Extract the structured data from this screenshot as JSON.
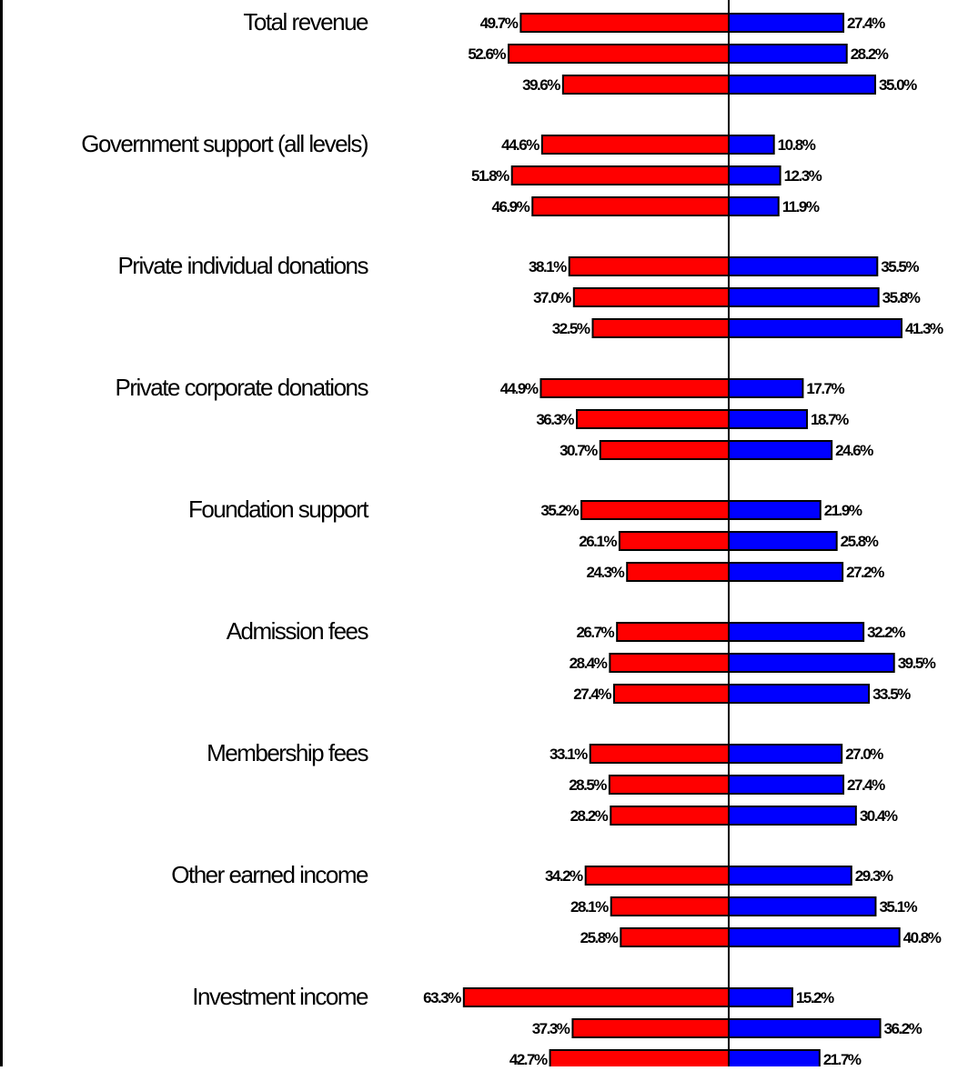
{
  "chart_data": {
    "type": "bar",
    "orientation": "horizontal-diverging",
    "title": "",
    "xlabel": "",
    "ylabel": "",
    "xlim": [
      -64,
      43
    ],
    "grid": false,
    "legend": "none",
    "colors": {
      "negative": "#ff0000",
      "positive": "#0000ff",
      "axis": "#000000"
    },
    "categories": [
      "Total revenue",
      "Government support (all levels)",
      "Private individual donations",
      "Private corporate donations",
      "Foundation support",
      "Admission fees",
      "Membership fees",
      "Other earned income",
      "Investment income"
    ],
    "groups": [
      {
        "left": [
          49.7,
          52.6,
          39.6
        ],
        "right": [
          27.4,
          28.2,
          35.0
        ],
        "left_labels": [
          "49.7%",
          "52.6%",
          "39.6%"
        ],
        "right_labels": [
          "27.4%",
          "28.2%",
          "35.0%"
        ]
      },
      {
        "left": [
          44.6,
          51.8,
          46.9
        ],
        "right": [
          10.8,
          12.3,
          11.9
        ],
        "left_labels": [
          "44.6%",
          "51.8%",
          "46.9%"
        ],
        "right_labels": [
          "10.8%",
          "12.3%",
          "11.9%"
        ]
      },
      {
        "left": [
          38.1,
          37.0,
          32.5
        ],
        "right": [
          35.5,
          35.8,
          41.3
        ],
        "left_labels": [
          "38.1%",
          "37.0%",
          "32.5%"
        ],
        "right_labels": [
          "35.5%",
          "35.8%",
          "41.3%"
        ]
      },
      {
        "left": [
          44.9,
          36.3,
          30.7
        ],
        "right": [
          17.7,
          18.7,
          24.6
        ],
        "left_labels": [
          "44.9%",
          "36.3%",
          "30.7%"
        ],
        "right_labels": [
          "17.7%",
          "18.7%",
          "24.6%"
        ]
      },
      {
        "left": [
          35.2,
          26.1,
          24.3
        ],
        "right": [
          21.9,
          25.8,
          27.2
        ],
        "left_labels": [
          "35.2%",
          "26.1%",
          "24.3%"
        ],
        "right_labels": [
          "21.9%",
          "25.8%",
          "27.2%"
        ]
      },
      {
        "left": [
          26.7,
          28.4,
          27.4
        ],
        "right": [
          32.2,
          39.5,
          33.5
        ],
        "left_labels": [
          "26.7%",
          "28.4%",
          "27.4%"
        ],
        "right_labels": [
          "32.2%",
          "39.5%",
          "33.5%"
        ]
      },
      {
        "left": [
          33.1,
          28.5,
          28.2
        ],
        "right": [
          27.0,
          27.4,
          30.4
        ],
        "left_labels": [
          "33.1%",
          "28.5%",
          "28.2%"
        ],
        "right_labels": [
          "27.0%",
          "27.4%",
          "30.4%"
        ]
      },
      {
        "left": [
          34.2,
          28.1,
          25.8
        ],
        "right": [
          29.3,
          35.1,
          40.8
        ],
        "left_labels": [
          "34.2%",
          "28.1%",
          "25.8%"
        ],
        "right_labels": [
          "29.3%",
          "35.1%",
          "40.8%"
        ]
      },
      {
        "left": [
          63.3,
          37.3,
          42.7
        ],
        "right": [
          15.2,
          36.2,
          21.7
        ],
        "left_labels": [
          "63.3%",
          "37.3%",
          "42.7%"
        ],
        "right_labels": [
          "15.2%",
          "36.2%",
          "21.7%"
        ]
      }
    ]
  }
}
